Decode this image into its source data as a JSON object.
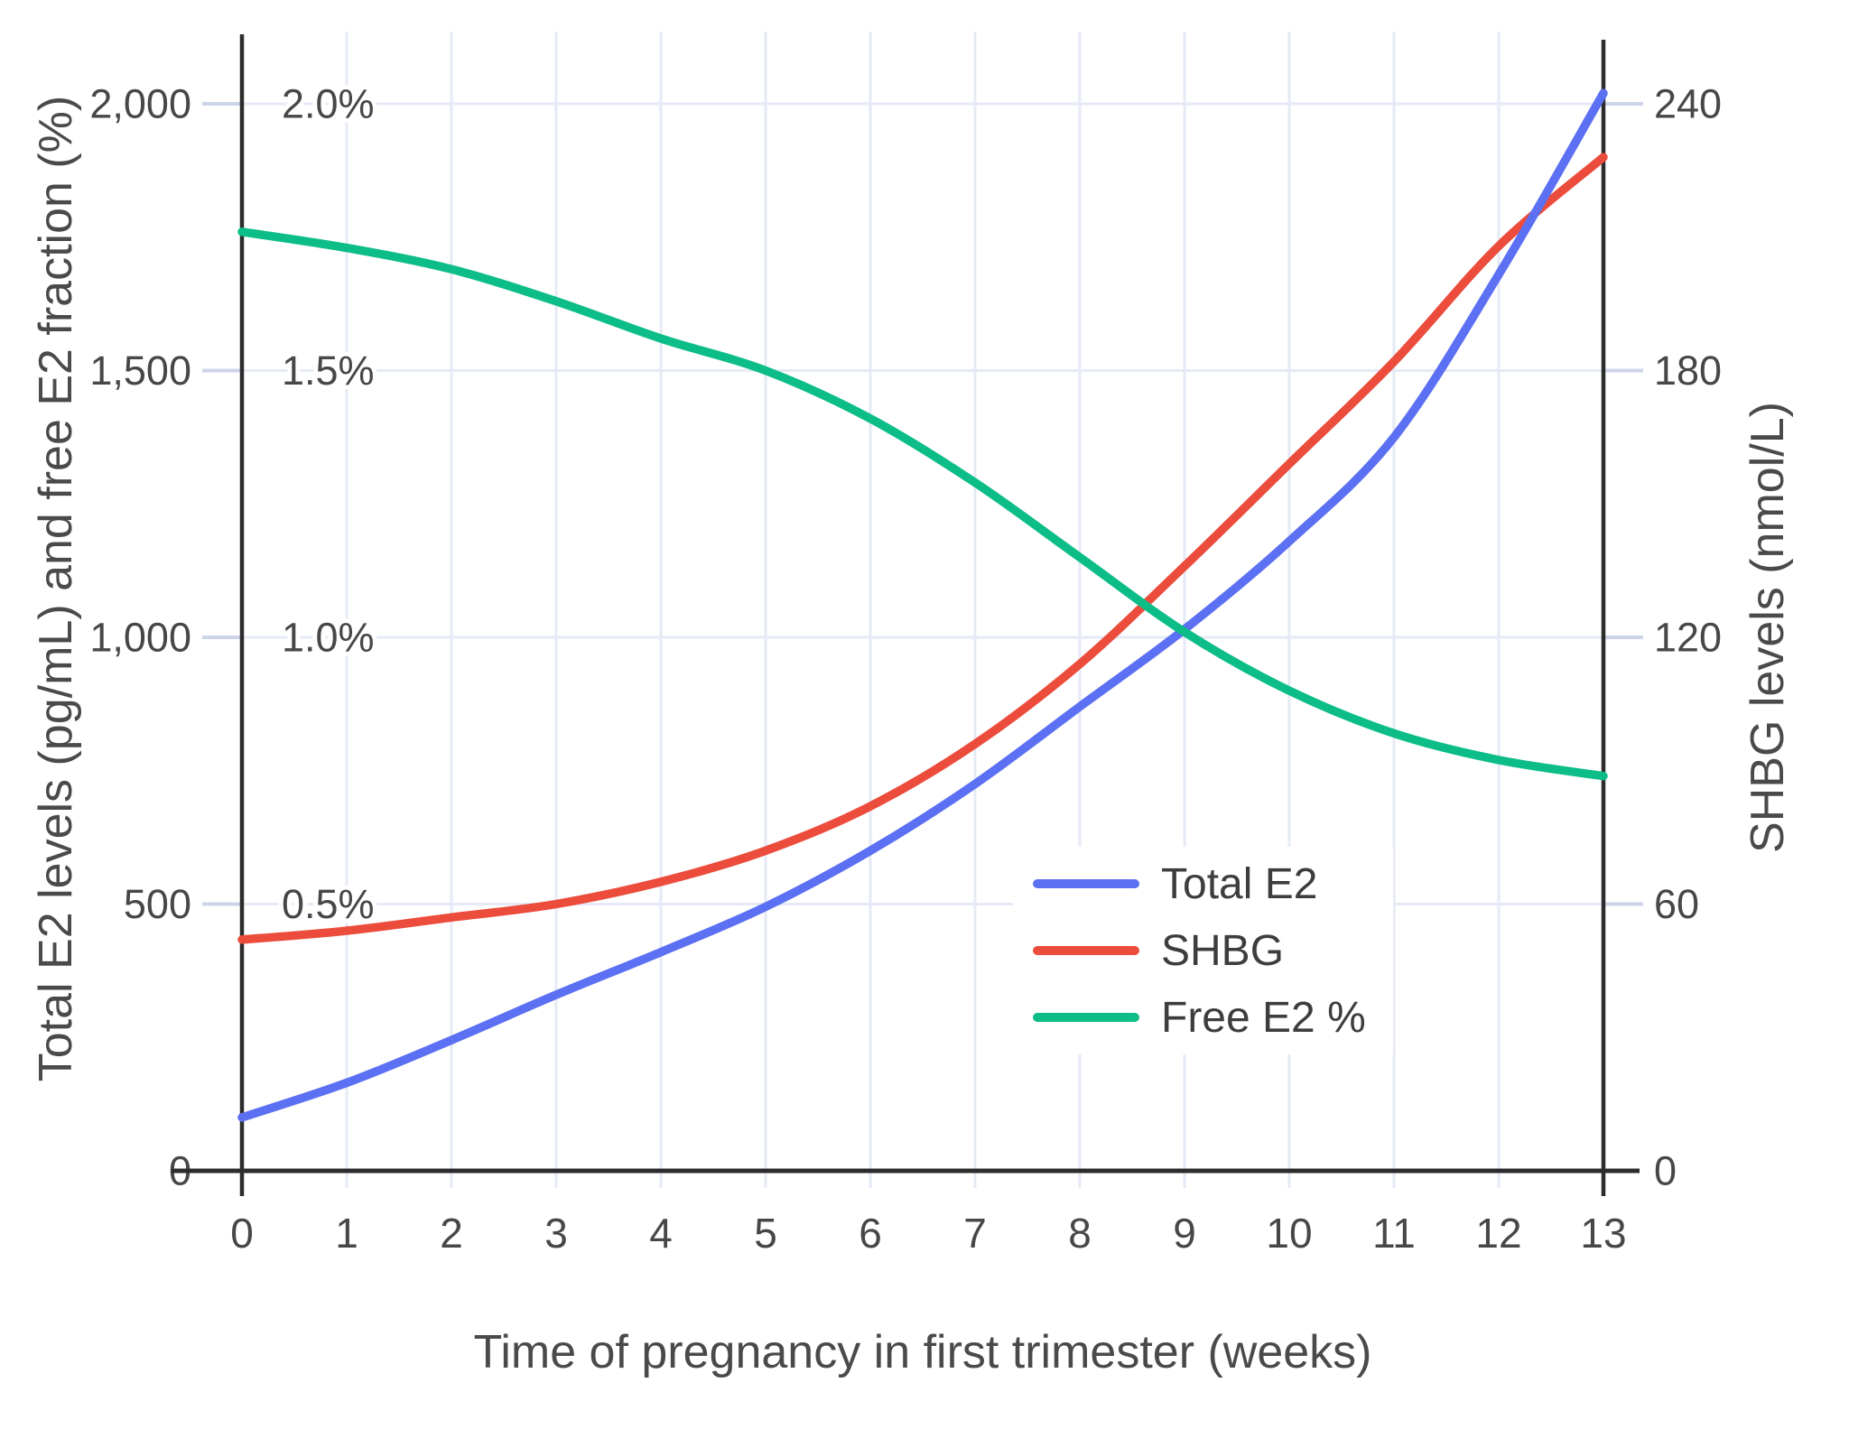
{
  "chart_data": {
    "type": "line",
    "title": "",
    "xlabel": "Time of pregnancy in first trimester (weeks)",
    "ylabel_left": "Total E2 levels (pg/mL) and free E2 fraction (%)",
    "ylabel_right": "SHBG levels (nmol/L)",
    "x": [
      0,
      1,
      2,
      3,
      4,
      5,
      6,
      7,
      8,
      9,
      10,
      11,
      12,
      13
    ],
    "x_tick_labels": [
      "0",
      "1",
      "2",
      "3",
      "4",
      "5",
      "6",
      "7",
      "8",
      "9",
      "10",
      "11",
      "12",
      "13"
    ],
    "xlim": [
      0,
      13
    ],
    "grid": true,
    "legend_position": "inside-middle-right",
    "left_axis": {
      "range": [
        0,
        2135
      ],
      "ticks": [
        {
          "value": 0,
          "label": "0"
        },
        {
          "value": 500,
          "label": "500"
        },
        {
          "value": 1000,
          "label": "1,000"
        },
        {
          "value": 1500,
          "label": "1,500"
        },
        {
          "value": 2000,
          "label": "2,000"
        }
      ]
    },
    "percent_axis": {
      "ticks": [
        {
          "value": 0.5,
          "label": "0.5%"
        },
        {
          "value": 1.0,
          "label": "1.0%"
        },
        {
          "value": 1.5,
          "label": "1.5%"
        },
        {
          "value": 2.0,
          "label": "2.0%"
        }
      ]
    },
    "right_axis": {
      "range": [
        0,
        256
      ],
      "ticks": [
        {
          "value": 0,
          "label": "0"
        },
        {
          "value": 60,
          "label": "60"
        },
        {
          "value": 120,
          "label": "120"
        },
        {
          "value": 180,
          "label": "180"
        },
        {
          "value": 240,
          "label": "240"
        }
      ]
    },
    "series": [
      {
        "name": "Total E2",
        "axis": "left",
        "unit": "pg/mL",
        "color": "#5b70f2",
        "values": [
          100,
          165,
          245,
          330,
          410,
          495,
          600,
          725,
          870,
          1015,
          1180,
          1375,
          1680,
          2020
        ]
      },
      {
        "name": "SHBG",
        "axis": "right",
        "unit": "nmol/L",
        "color": "#ec4c3c",
        "values": [
          52,
          54,
          57,
          60,
          65,
          72,
          82,
          96,
          114,
          136,
          159,
          182,
          208,
          228
        ]
      },
      {
        "name": "Free E2 %",
        "axis": "percent",
        "unit": "%",
        "color": "#0cbd88",
        "values": [
          1.76,
          1.73,
          1.69,
          1.63,
          1.56,
          1.5,
          1.41,
          1.29,
          1.15,
          1.01,
          0.9,
          0.82,
          0.77,
          0.74
        ]
      }
    ]
  }
}
